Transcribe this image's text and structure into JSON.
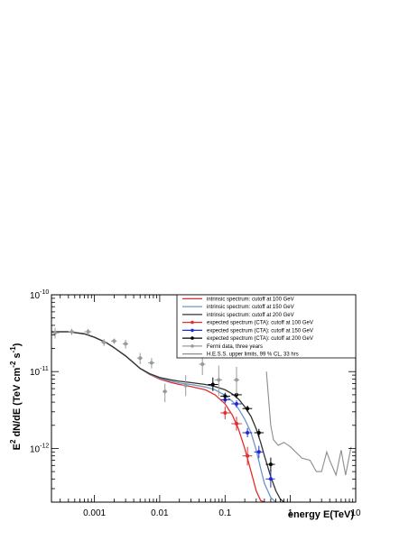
{
  "chart_data": {
    "type": "line",
    "title": "",
    "xlabel": "energy E(TeV)",
    "ylabel_parts": [
      "E",
      "2",
      " dN/dE (TeV cm",
      "-2",
      " s",
      "-1",
      ")"
    ],
    "xscale": "log",
    "yscale": "log",
    "xlim": [
      0.00022,
      10
    ],
    "ylim": [
      2e-13,
      1e-10
    ],
    "grid": false,
    "legend_position": "top-right",
    "x_tick_labels": [
      {
        "value": 0.001,
        "label": "0.001"
      },
      {
        "value": 0.01,
        "label": "0.01"
      },
      {
        "value": 0.1,
        "label": "0.1"
      },
      {
        "value": 1,
        "label": "1"
      },
      {
        "value": 10,
        "label": "10"
      }
    ],
    "y_tick_labels": [
      {
        "value": 1e-10,
        "base": "10",
        "exp": "-10"
      },
      {
        "value": 1e-11,
        "base": "10",
        "exp": "-11"
      },
      {
        "value": 1e-12,
        "base": "10",
        "exp": "-12"
      }
    ],
    "series": [
      {
        "name": "intrinsic spectrum: cutoff at 100 GeV",
        "kind": "curve",
        "color": "#e32d2d",
        "x": [
          0.00022,
          0.0004,
          0.0007,
          0.001,
          0.0015,
          0.002,
          0.003,
          0.004,
          0.005,
          0.007,
          0.01,
          0.015,
          0.02,
          0.03,
          0.05,
          0.07,
          0.1,
          0.13,
          0.16,
          0.2,
          0.25,
          0.3,
          0.35,
          0.4
        ],
        "y": [
          3.3e-11,
          3.3e-11,
          3.1e-11,
          2.8e-11,
          2.4e-11,
          2.05e-11,
          1.6e-11,
          1.3e-11,
          1.1e-11,
          9.2e-12,
          8e-12,
          7.2e-12,
          6.8e-12,
          6.4e-12,
          5.8e-12,
          5e-12,
          3.8e-12,
          2.7e-12,
          1.8e-12,
          1e-12,
          5e-13,
          2.8e-13,
          2.1e-13,
          2e-13
        ]
      },
      {
        "name": "intrinsic spectrum: cutoff at 150 GeV",
        "kind": "curve",
        "color": "#6e95c8",
        "x": [
          0.00022,
          0.0004,
          0.0007,
          0.001,
          0.0015,
          0.002,
          0.003,
          0.004,
          0.005,
          0.007,
          0.01,
          0.015,
          0.02,
          0.03,
          0.05,
          0.07,
          0.1,
          0.13,
          0.16,
          0.2,
          0.25,
          0.3,
          0.35,
          0.4,
          0.5,
          0.6
        ],
        "y": [
          3.3e-11,
          3.3e-11,
          3.1e-11,
          2.8e-11,
          2.4e-11,
          2.05e-11,
          1.6e-11,
          1.3e-11,
          1.1e-11,
          9.3e-12,
          8.2e-12,
          7.5e-12,
          7.1e-12,
          6.8e-12,
          6.3e-12,
          5.8e-12,
          4.9e-12,
          4.1e-12,
          3.3e-12,
          2.4e-12,
          1.6e-12,
          9.5e-13,
          5.5e-13,
          3.5e-13,
          2.3e-13,
          2e-13
        ]
      },
      {
        "name": "intrinsic spectrum: cutoff at 200 GeV",
        "kind": "curve",
        "color": "#333333",
        "x": [
          0.00022,
          0.0004,
          0.0007,
          0.001,
          0.0015,
          0.002,
          0.003,
          0.004,
          0.005,
          0.007,
          0.01,
          0.015,
          0.02,
          0.03,
          0.05,
          0.07,
          0.1,
          0.13,
          0.16,
          0.2,
          0.25,
          0.3,
          0.35,
          0.4,
          0.5,
          0.6,
          0.7,
          0.8
        ],
        "y": [
          3.3e-11,
          3.3e-11,
          3.1e-11,
          2.8e-11,
          2.4e-11,
          2.05e-11,
          1.6e-11,
          1.3e-11,
          1.1e-11,
          9.4e-12,
          8.4e-12,
          7.8e-12,
          7.5e-12,
          7.2e-12,
          6.8e-12,
          6.4e-12,
          5.8e-12,
          5.1e-12,
          4.4e-12,
          3.5e-12,
          2.6e-12,
          1.8e-12,
          1.2e-12,
          8e-13,
          4.3e-13,
          2.8e-13,
          2.2e-13,
          2e-13
        ]
      },
      {
        "name": "expected spectrum (CTA): cutoff at 100 GeV",
        "kind": "points",
        "color": "#e32d2d",
        "points": [
          {
            "x": 0.1,
            "y": 2.9e-12,
            "x_lo": 0.085,
            "x_hi": 0.12,
            "y_lo": 2.4e-12,
            "y_hi": 3.5e-12
          },
          {
            "x": 0.15,
            "y": 2.1e-12,
            "x_lo": 0.125,
            "x_hi": 0.18,
            "y_lo": 1.7e-12,
            "y_hi": 2.6e-12
          },
          {
            "x": 0.22,
            "y": 8e-13,
            "x_lo": 0.185,
            "x_hi": 0.26,
            "y_lo": 6e-13,
            "y_hi": 1.05e-12
          }
        ]
      },
      {
        "name": "expected spectrum (CTA): cutoff at 150 GeV",
        "kind": "points",
        "color": "#1f2bd9",
        "points": [
          {
            "x": 0.1,
            "y": 4.3e-12,
            "x_lo": 0.085,
            "x_hi": 0.12,
            "y_lo": 3.9e-12,
            "y_hi": 4.8e-12
          },
          {
            "x": 0.15,
            "y": 3.8e-12,
            "x_lo": 0.125,
            "x_hi": 0.18,
            "y_lo": 3.4e-12,
            "y_hi": 4.2e-12
          },
          {
            "x": 0.22,
            "y": 1.6e-12,
            "x_lo": 0.185,
            "x_hi": 0.26,
            "y_lo": 1.4e-12,
            "y_hi": 1.85e-12
          },
          {
            "x": 0.33,
            "y": 9e-13,
            "x_lo": 0.28,
            "x_hi": 0.39,
            "y_lo": 7.5e-13,
            "y_hi": 1.08e-12
          },
          {
            "x": 0.5,
            "y": 4e-13,
            "x_lo": 0.42,
            "x_hi": 0.58,
            "y_lo": 3.1e-13,
            "y_hi": 5.2e-13
          }
        ]
      },
      {
        "name": "expected spectrum (CTA): cutoff at 200 GeV",
        "kind": "points",
        "color": "#000000",
        "points": [
          {
            "x": 0.065,
            "y": 6.8e-12,
            "x_lo": 0.055,
            "x_hi": 0.078,
            "y_lo": 5.6e-12,
            "y_hi": 8.4e-12
          },
          {
            "x": 0.1,
            "y": 4.8e-12,
            "x_lo": 0.085,
            "x_hi": 0.12,
            "y_lo": 4.3e-12,
            "y_hi": 5.3e-12
          },
          {
            "x": 0.15,
            "y": 5e-12,
            "x_lo": 0.125,
            "x_hi": 0.18,
            "y_lo": 4.5e-12,
            "y_hi": 5.5e-12
          },
          {
            "x": 0.22,
            "y": 3.3e-12,
            "x_lo": 0.185,
            "x_hi": 0.26,
            "y_lo": 3e-12,
            "y_hi": 3.6e-12
          },
          {
            "x": 0.33,
            "y": 1.6e-12,
            "x_lo": 0.28,
            "x_hi": 0.39,
            "y_lo": 1.4e-12,
            "y_hi": 1.8e-12
          },
          {
            "x": 0.5,
            "y": 6.2e-13,
            "x_lo": 0.42,
            "x_hi": 0.58,
            "y_lo": 5e-13,
            "y_hi": 7.6e-13
          }
        ]
      },
      {
        "name": "Fermi data, three years",
        "kind": "points",
        "color": "#9a9a9a",
        "points": [
          {
            "x": 0.00025,
            "y": 3.2e-11,
            "x_lo": 0.00022,
            "x_hi": 0.00029,
            "y_lo": 2.7e-11,
            "y_hi": 3.7e-11
          },
          {
            "x": 0.00045,
            "y": 3.3e-11,
            "x_lo": 0.0004,
            "x_hi": 0.0005,
            "y_lo": 3e-11,
            "y_hi": 3.6e-11
          },
          {
            "x": 0.0008,
            "y": 3.3e-11,
            "x_lo": 0.0007,
            "x_hi": 0.0009,
            "y_lo": 3e-11,
            "y_hi": 3.6e-11
          },
          {
            "x": 0.0014,
            "y": 2.4e-11,
            "x_lo": 0.00125,
            "x_hi": 0.0016,
            "y_lo": 2.15e-11,
            "y_hi": 2.65e-11
          },
          {
            "x": 0.002,
            "y": 2.5e-11,
            "x_lo": 0.0018,
            "x_hi": 0.0022,
            "y_lo": 2.3e-11,
            "y_hi": 2.7e-11
          },
          {
            "x": 0.003,
            "y": 2.3e-11,
            "x_lo": 0.0027,
            "x_hi": 0.0033,
            "y_lo": 2e-11,
            "y_hi": 2.6e-11
          },
          {
            "x": 0.005,
            "y": 1.5e-11,
            "x_lo": 0.0045,
            "x_hi": 0.0055,
            "y_lo": 1.25e-11,
            "y_hi": 1.75e-11
          },
          {
            "x": 0.0075,
            "y": 1.3e-11,
            "x_lo": 0.0067,
            "x_hi": 0.0083,
            "y_lo": 1.1e-11,
            "y_hi": 1.5e-11
          },
          {
            "x": 0.012,
            "y": 5.5e-12,
            "x_lo": 0.011,
            "x_hi": 0.013,
            "y_lo": 4e-12,
            "y_hi": 7e-12
          },
          {
            "x": 0.025,
            "y": 6.6e-12,
            "x_lo": 0.022,
            "x_hi": 0.028,
            "y_lo": 4.8e-12,
            "y_hi": 9e-12
          },
          {
            "x": 0.045,
            "y": 1.25e-11,
            "x_lo": 0.04,
            "x_hi": 0.05,
            "y_lo": 9e-12,
            "y_hi": 1.7e-11
          },
          {
            "x": 0.08,
            "y": 7.8e-12,
            "x_lo": 0.07,
            "x_hi": 0.09,
            "y_lo": 4.8e-12,
            "y_hi": 1.2e-11
          },
          {
            "x": 0.15,
            "y": 7.8e-12,
            "x_lo": 0.135,
            "x_hi": 0.165,
            "y_lo": 5e-12,
            "y_hi": 1.15e-11
          }
        ]
      },
      {
        "name": "H.E.S.S. upper limits, 99 % CL, 33 hrs",
        "kind": "curve",
        "color": "#8c8c8c",
        "x": [
          0.43,
          0.5,
          0.55,
          0.65,
          0.8,
          1.0,
          1.5,
          2.0,
          2.5,
          3.0,
          3.6,
          4.0,
          5.0,
          6.0,
          7.0,
          8.5
        ],
        "y": [
          1e-11,
          2e-12,
          1.3e-12,
          1.1e-12,
          1.2e-12,
          1.05e-12,
          7.5e-13,
          7e-13,
          5e-13,
          5e-13,
          9e-13,
          7e-13,
          4.5e-13,
          9.5e-13,
          4.5e-13,
          1.05e-12
        ]
      }
    ]
  }
}
